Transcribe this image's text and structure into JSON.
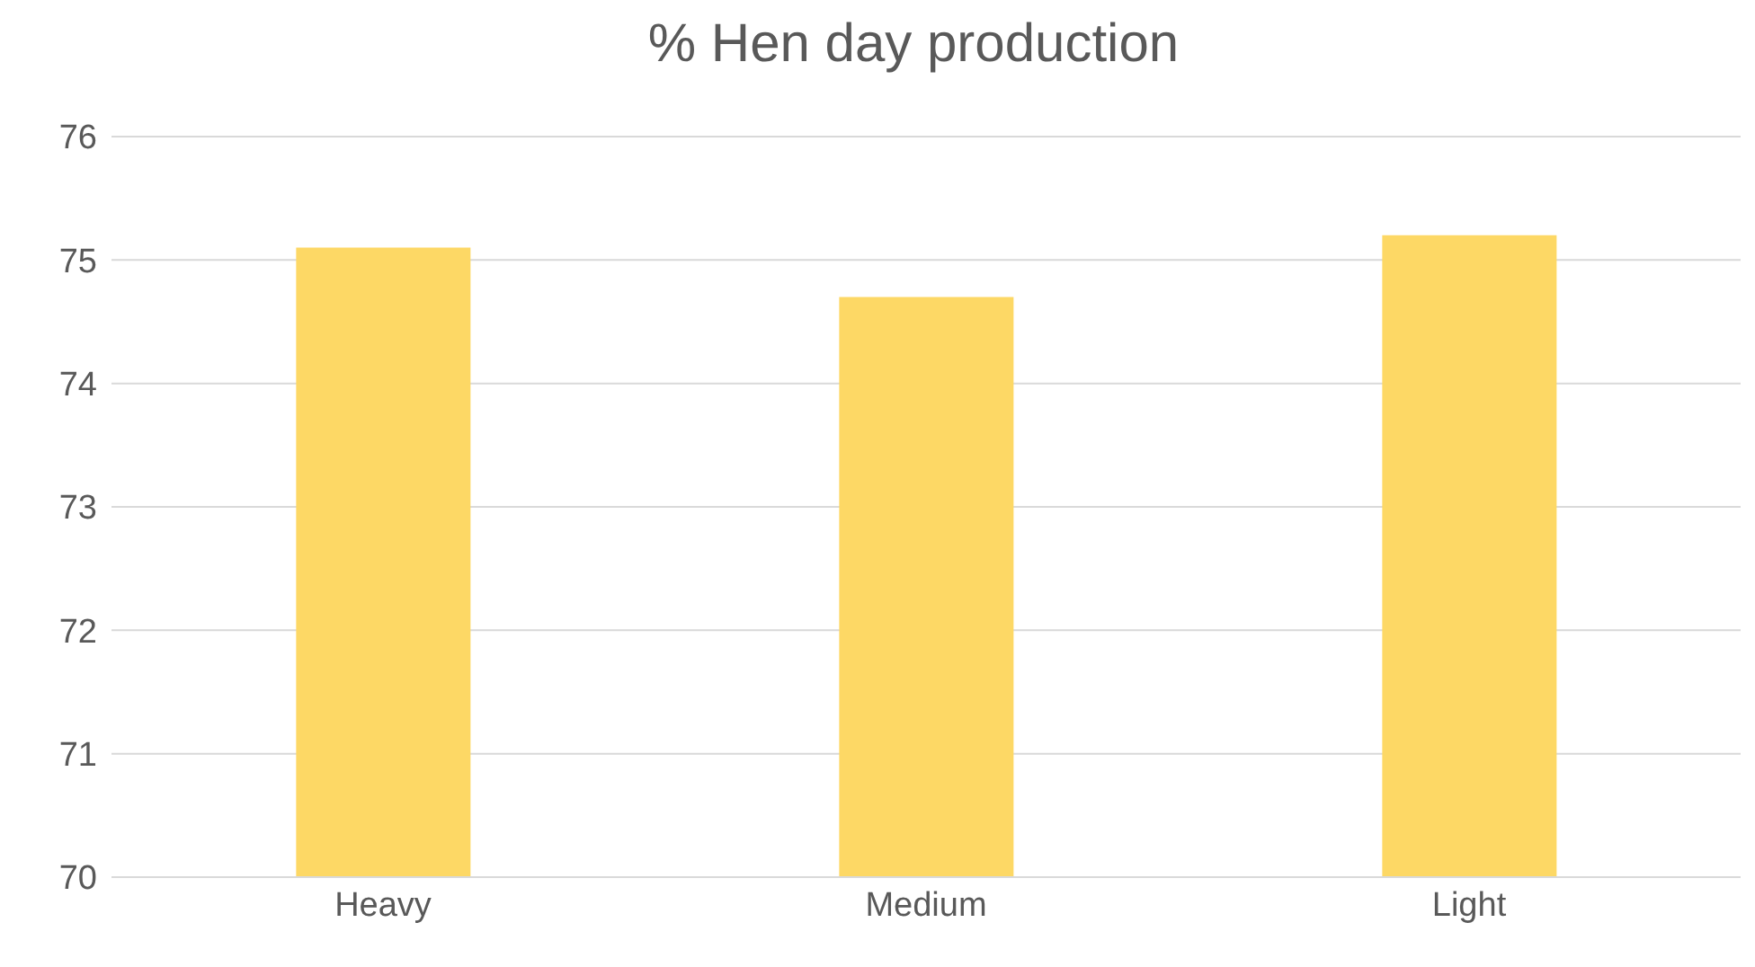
{
  "chart_data": {
    "type": "bar",
    "title": "% Hen day production",
    "categories": [
      "Heavy",
      "Medium",
      "Light"
    ],
    "values": [
      75.1,
      74.7,
      75.2
    ],
    "color": "#fdd865",
    "ylim": [
      70,
      76
    ],
    "yticks": [
      70,
      71,
      72,
      73,
      74,
      75,
      76
    ],
    "grid": "y"
  }
}
